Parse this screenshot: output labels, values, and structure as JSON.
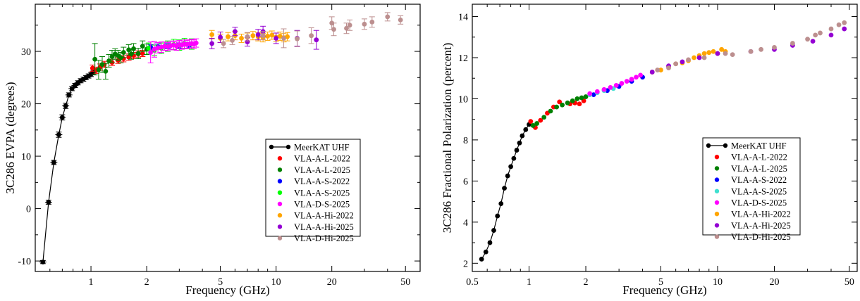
{
  "chart_data": [
    {
      "type": "scatter",
      "panel": "left",
      "xscale": "log",
      "xlabel": "Frequency (GHz)",
      "ylabel": "3C286 EVPA (degrees)",
      "xlim": [
        0.5,
        60
      ],
      "ylim": [
        -12,
        39
      ],
      "xticks": [
        1,
        2,
        5,
        10,
        20,
        50
      ],
      "yticks": [
        -10,
        0,
        10,
        20,
        30
      ],
      "legend_position": "lower-right",
      "series": [
        {
          "name": "MeerKAT UHF",
          "color": "#000000",
          "line": true,
          "x": [
            0.55,
            0.59,
            0.63,
            0.67,
            0.7,
            0.73,
            0.76,
            0.79,
            0.82,
            0.85,
            0.88,
            0.91,
            0.94,
            0.97,
            1.0,
            1.03
          ],
          "y": [
            -10.2,
            1.2,
            8.8,
            14.1,
            17.4,
            19.6,
            21.7,
            22.9,
            23.5,
            24.0,
            24.4,
            24.7,
            25.0,
            25.3,
            25.6,
            26.0
          ],
          "err": [
            0.3,
            0.4,
            0.4,
            0.5,
            0.5,
            0.5,
            0.4,
            0.4,
            0.4,
            0.4,
            0.4,
            0.4,
            0.4,
            0.4,
            0.4,
            0.4
          ]
        },
        {
          "name": "VLA-A-L-2022",
          "color": "#ff0000",
          "x": [
            1.02,
            1.07,
            1.12,
            1.18,
            1.3,
            1.4,
            1.5,
            1.6,
            1.7,
            1.8,
            1.9
          ],
          "y": [
            26.8,
            26.4,
            27.0,
            27.5,
            27.9,
            28.3,
            28.6,
            28.9,
            29.2,
            29.5,
            29.6
          ],
          "err": [
            0.6,
            0.6,
            0.6,
            0.6,
            0.6,
            0.6,
            0.6,
            0.6,
            0.6,
            0.6,
            0.6
          ]
        },
        {
          "name": "VLA-A-L-2025",
          "color": "#008000",
          "x": [
            1.05,
            1.1,
            1.15,
            1.2,
            1.25,
            1.3,
            1.35,
            1.4,
            1.45,
            1.5,
            1.6,
            1.65,
            1.7,
            1.8,
            1.9,
            2.0
          ],
          "y": [
            28.5,
            26.5,
            27.5,
            26.2,
            28.2,
            29.0,
            29.5,
            29.2,
            28.8,
            29.8,
            30.3,
            29.5,
            30.5,
            29.6,
            31.0,
            30.4
          ],
          "err": [
            3.0,
            1.8,
            1.5,
            1.5,
            1.2,
            1.2,
            1.0,
            1.0,
            1.0,
            1.0,
            1.0,
            1.0,
            1.0,
            1.0,
            1.0,
            1.0
          ]
        },
        {
          "name": "VLA-A-S-2022",
          "color": "#0000ff",
          "x": [
            2.1,
            2.3,
            2.6,
            3.0,
            3.4
          ],
          "y": [
            30.8,
            30.9,
            31.0,
            31.1,
            31.2
          ],
          "err": [
            0.5,
            0.5,
            0.5,
            0.5,
            0.5
          ]
        },
        {
          "name": "VLA-A-S-2025",
          "color": "#00ff00",
          "x": [
            2.05,
            2.2,
            2.4,
            2.6,
            2.8,
            3.0,
            3.2,
            3.5
          ],
          "y": [
            30.6,
            30.2,
            30.6,
            31.0,
            31.3,
            31.2,
            31.5,
            31.4
          ],
          "err": [
            1.0,
            1.0,
            1.0,
            1.0,
            1.0,
            1.0,
            1.0,
            1.0
          ]
        },
        {
          "name": "VLA-D-S-2025",
          "color": "#ff00ff",
          "x": [
            2.1,
            2.2,
            2.3,
            2.4,
            2.5,
            2.6,
            2.7,
            2.8,
            2.9,
            3.0,
            3.1,
            3.2,
            3.3,
            3.4,
            3.5,
            3.6,
            3.7
          ],
          "y": [
            29.8,
            30.4,
            30.7,
            30.8,
            31.0,
            30.9,
            31.1,
            31.2,
            31.0,
            31.3,
            31.2,
            31.4,
            31.3,
            31.4,
            31.5,
            31.4,
            31.6
          ],
          "err": [
            2.0,
            1.5,
            1.0,
            1.0,
            0.8,
            0.8,
            0.8,
            0.8,
            0.8,
            0.8,
            0.8,
            0.8,
            0.8,
            0.8,
            0.8,
            0.8,
            0.8
          ]
        },
        {
          "name": "VLA-A-Hi-2022",
          "color": "#ffa500",
          "x": [
            4.5,
            5.0,
            5.5,
            6.0,
            6.5,
            7.0,
            7.5,
            8.0,
            8.5,
            9.0,
            9.5,
            10.0,
            10.5,
            11.0,
            11.5
          ],
          "y": [
            33.2,
            32.5,
            32.8,
            33.0,
            32.5,
            32.7,
            33.0,
            32.8,
            32.6,
            32.9,
            33.1,
            32.7,
            32.9,
            32.6,
            32.8
          ],
          "err": [
            0.8,
            0.8,
            0.8,
            0.8,
            0.8,
            0.8,
            0.8,
            0.8,
            0.8,
            0.8,
            0.8,
            0.8,
            0.8,
            0.8,
            0.8
          ]
        },
        {
          "name": "VLA-A-Hi-2025",
          "color": "#9400d3",
          "x": [
            4.5,
            5.0,
            6.0,
            7.0,
            8.0,
            8.5,
            10.0,
            13.0,
            16.5
          ],
          "y": [
            31.5,
            32.7,
            33.8,
            31.8,
            33.2,
            33.8,
            32.5,
            32.5,
            32.2
          ],
          "err": [
            1.0,
            1.0,
            0.8,
            0.8,
            1.0,
            1.0,
            1.0,
            1.5,
            1.8
          ]
        },
        {
          "name": "VLA-D-Hi-2025",
          "color": "#bc8f8f",
          "x": [
            5.2,
            5.8,
            7.0,
            8.5,
            11.0,
            13.0,
            15.5,
            20.0,
            20.5,
            24.0,
            25.0,
            30.0,
            33.0,
            40.0,
            47.0
          ],
          "y": [
            31.5,
            32.1,
            32.8,
            33.0,
            32.5,
            32.4,
            33.0,
            35.4,
            34.2,
            34.4,
            35.0,
            35.2,
            35.6,
            36.6,
            36.0
          ],
          "err": [
            0.8,
            0.8,
            0.8,
            0.8,
            1.8,
            1.5,
            1.5,
            1.2,
            1.2,
            1.0,
            1.0,
            1.0,
            1.0,
            0.8,
            0.8
          ]
        }
      ]
    },
    {
      "type": "scatter",
      "panel": "right",
      "xscale": "log",
      "xlabel": "Frequency (GHz)",
      "ylabel": "3C286 Fractional Polarization (percent)",
      "xlim": [
        0.5,
        55
      ],
      "ylim": [
        1.6,
        14.6
      ],
      "xticks": [
        0.5,
        1,
        2,
        5,
        10,
        20,
        50
      ],
      "yticks": [
        2,
        4,
        6,
        8,
        10,
        12,
        14
      ],
      "legend_position": "lower-right",
      "series": [
        {
          "name": "MeerKAT UHF",
          "color": "#000000",
          "line": true,
          "x": [
            0.56,
            0.59,
            0.62,
            0.65,
            0.68,
            0.71,
            0.74,
            0.77,
            0.8,
            0.83,
            0.86,
            0.89,
            0.92,
            0.96,
            1.0
          ],
          "y": [
            2.2,
            2.55,
            3.0,
            3.6,
            4.3,
            4.9,
            5.65,
            6.25,
            6.7,
            7.1,
            7.5,
            7.85,
            8.2,
            8.5,
            8.75
          ]
        },
        {
          "name": "VLA-A-L-2022",
          "color": "#ff0000",
          "x": [
            1.02,
            1.08,
            1.15,
            1.25,
            1.35,
            1.45,
            1.65,
            1.75,
            1.85,
            1.95
          ],
          "y": [
            8.9,
            8.6,
            8.95,
            9.3,
            9.6,
            9.85,
            9.75,
            9.8,
            9.75,
            9.9
          ]
        },
        {
          "name": "VLA-A-L-2025",
          "color": "#008000",
          "x": [
            1.05,
            1.1,
            1.2,
            1.3,
            1.4,
            1.5,
            1.6,
            1.7,
            1.8,
            1.9,
            2.0
          ],
          "y": [
            8.7,
            8.8,
            9.1,
            9.4,
            9.6,
            9.7,
            9.8,
            9.9,
            10.0,
            10.05,
            10.1
          ]
        },
        {
          "name": "VLA-A-S-2022",
          "color": "#0000ff",
          "x": [
            2.2,
            2.6,
            3.0,
            3.5,
            4.0
          ],
          "y": [
            10.2,
            10.4,
            10.6,
            10.85,
            11.05
          ]
        },
        {
          "name": "VLA-A-S-2025",
          "color": "#40e0d0",
          "x": [
            2.1,
            2.3,
            2.5,
            2.8
          ],
          "y": [
            10.2,
            10.3,
            10.4,
            10.5
          ]
        },
        {
          "name": "VLA-D-S-2025",
          "color": "#ff00ff",
          "x": [
            2.1,
            2.3,
            2.5,
            2.7,
            2.9,
            3.1,
            3.3,
            3.5,
            3.7,
            3.9
          ],
          "y": [
            10.25,
            10.35,
            10.45,
            10.55,
            10.65,
            10.75,
            10.85,
            10.95,
            11.05,
            11.15
          ]
        },
        {
          "name": "VLA-A-Hi-2022",
          "color": "#ffa500",
          "x": [
            4.5,
            5.0,
            5.5,
            6.0,
            6.5,
            7.0,
            7.5,
            8.0,
            8.5,
            9.0,
            9.5,
            10.0,
            10.5,
            11.0
          ],
          "y": [
            11.3,
            11.4,
            11.55,
            11.7,
            11.75,
            11.85,
            12.0,
            12.1,
            12.2,
            12.25,
            12.3,
            12.2,
            12.4,
            12.3
          ]
        },
        {
          "name": "VLA-A-Hi-2025",
          "color": "#9400d3",
          "x": [
            4.5,
            5.5,
            6.5,
            8.0,
            10.0,
            15.0,
            20.0,
            25.0,
            32.0,
            40.0,
            47.0
          ],
          "y": [
            11.3,
            11.6,
            11.8,
            12.0,
            12.2,
            12.3,
            12.4,
            12.6,
            12.8,
            13.1,
            13.4
          ]
        },
        {
          "name": "VLA-D-Hi-2025",
          "color": "#bc8f8f",
          "x": [
            4.8,
            5.5,
            6.0,
            7.0,
            8.5,
            11.0,
            12.0,
            15.0,
            17.0,
            20.0,
            25.0,
            30.0,
            33.0,
            35.0,
            40.0,
            44.0,
            47.0
          ],
          "y": [
            11.4,
            11.5,
            11.7,
            11.9,
            12.0,
            12.2,
            12.15,
            12.3,
            12.4,
            12.5,
            12.7,
            12.9,
            13.1,
            13.2,
            13.4,
            13.6,
            13.7
          ]
        }
      ]
    }
  ]
}
